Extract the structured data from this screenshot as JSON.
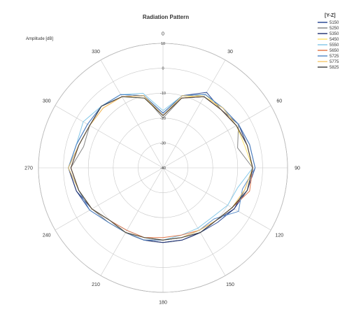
{
  "chart_data": {
    "type": "polar-line",
    "title": "Radiation Pattern",
    "ylabel": "Amplitude [dB]",
    "legend_title": "[Y-Z]",
    "legend_position": "top-right",
    "r_range": [
      -40,
      10
    ],
    "r_ticks": [
      -40,
      -30,
      -20,
      -10,
      0,
      10
    ],
    "angle_ticks": [
      0,
      30,
      60,
      90,
      120,
      150,
      180,
      210,
      240,
      270,
      300,
      330
    ],
    "angle_labels": [
      "0",
      "30",
      "60",
      "90",
      "120",
      "150",
      "180",
      "210",
      "240",
      "270",
      "300",
      "330"
    ],
    "grid": true,
    "angles": [
      0,
      15,
      30,
      45,
      60,
      75,
      90,
      105,
      120,
      135,
      150,
      165,
      180,
      195,
      210,
      225,
      240,
      255,
      270,
      285,
      300,
      315,
      330,
      345
    ],
    "series": [
      {
        "name": "5150",
        "color": "#1f3f8f",
        "values": [
          -18,
          -10,
          -5,
          -7,
          -5,
          -4,
          -3,
          -5,
          -7,
          -9,
          -10,
          -10,
          -10,
          -10,
          -10,
          -9,
          -6,
          -4,
          -2,
          -4,
          -5,
          -5,
          -6,
          -10
        ]
      },
      {
        "name": "5250",
        "color": "#7f7f7f",
        "values": [
          -20,
          -11,
          -7,
          -7,
          -5,
          -9,
          -4,
          -5,
          -8,
          -10,
          -10,
          -11,
          -11,
          -10,
          -10,
          -9,
          -7,
          -5,
          -3,
          -7,
          -6,
          -5,
          -7,
          -10
        ]
      },
      {
        "name": "5350",
        "color": "#1f2f6f",
        "values": [
          -18,
          -10,
          -6,
          -6,
          -5,
          -5,
          -4,
          -6,
          -7,
          -10,
          -10,
          -10,
          -10,
          -10,
          -10,
          -10,
          -7,
          -4,
          -2,
          -5,
          -6,
          -5,
          -7,
          -10
        ]
      },
      {
        "name": "5450",
        "color": "#ffe066",
        "values": [
          -19,
          -11,
          -6,
          -7,
          -6,
          -6,
          -4,
          -6,
          -8,
          -10,
          -11,
          -11,
          -11,
          -11,
          -10,
          -10,
          -7,
          -5,
          -3,
          -5,
          -6,
          -6,
          -7,
          -11
        ]
      },
      {
        "name": "5550",
        "color": "#7fc6e8",
        "values": [
          -17,
          -10,
          -6,
          -6,
          -6,
          -5,
          -4,
          -9,
          -10,
          -12,
          -12,
          -12,
          -11,
          -11,
          -11,
          -10,
          -7,
          -5,
          -2,
          -4,
          -3,
          -5,
          -6,
          -9
        ]
      },
      {
        "name": "5650",
        "color": "#e07040",
        "values": [
          -19,
          -11,
          -7,
          -7,
          -6,
          -5,
          -4,
          -4,
          -8,
          -10,
          -11,
          -12,
          -12,
          -11,
          -11,
          -10,
          -7,
          -5,
          -3,
          -5,
          -6,
          -6,
          -7,
          -10
        ]
      },
      {
        "name": "5725",
        "color": "#4f86c6",
        "values": [
          -18,
          -10,
          -6,
          -6,
          -5,
          -4,
          -3,
          -7,
          -5,
          -11,
          -11,
          -11,
          -11,
          -10,
          -10,
          -9,
          -6,
          -5,
          -2,
          -4,
          -5,
          -5,
          -6,
          -10
        ]
      },
      {
        "name": "5775",
        "color": "#f4c86a",
        "values": [
          -19,
          -10,
          -7,
          -6,
          -6,
          -5,
          -4,
          -6,
          -8,
          -10,
          -11,
          -11,
          -11,
          -11,
          -10,
          -10,
          -7,
          -5,
          -2,
          -5,
          -6,
          -6,
          -7,
          -10
        ]
      },
      {
        "name": "5825",
        "color": "#3a3a3a",
        "values": [
          -19,
          -11,
          -7,
          -7,
          -6,
          -5,
          -4,
          -5,
          -8,
          -10,
          -10,
          -11,
          -11,
          -11,
          -10,
          -10,
          -7,
          -5,
          -3,
          -5,
          -6,
          -5,
          -7,
          -11
        ]
      }
    ]
  }
}
